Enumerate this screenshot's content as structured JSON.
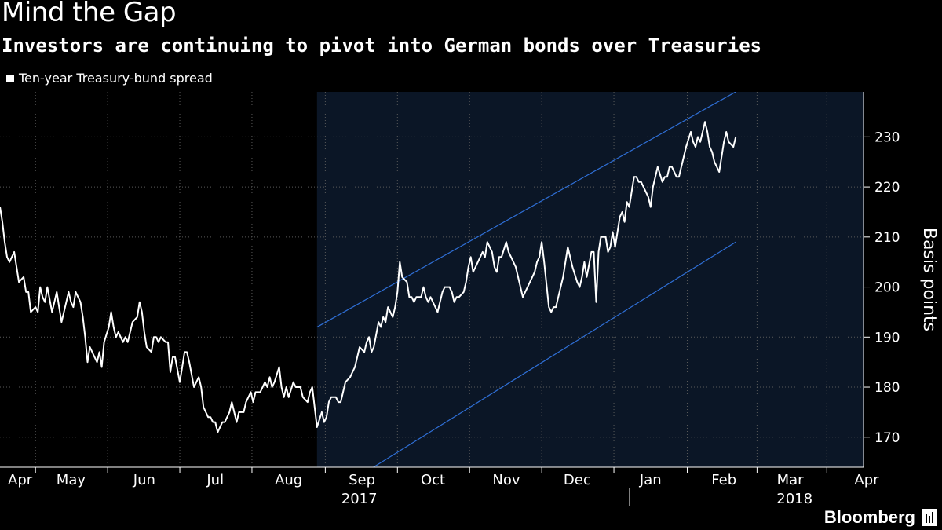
{
  "chart_data": {
    "type": "line",
    "title": "Mind the Gap",
    "subtitle": "Investors are continuing to pivot into German bonds over Treasuries",
    "ylabel": "Basis points",
    "ylim": [
      164,
      239
    ],
    "yticks": [
      170,
      180,
      190,
      200,
      210,
      220,
      230
    ],
    "x_range_days": [
      0,
      365
    ],
    "series": [
      {
        "name": "Ten-year Treasury-bund spread",
        "color": "#ffffff",
        "points": [
          [
            0,
            216
          ],
          [
            1,
            213
          ],
          [
            2,
            209
          ],
          [
            3,
            206
          ],
          [
            4,
            205
          ],
          [
            6,
            207
          ],
          [
            7,
            204
          ],
          [
            8,
            201
          ],
          [
            10,
            202
          ],
          [
            11,
            199
          ],
          [
            12,
            199
          ],
          [
            13,
            195
          ],
          [
            15,
            196
          ],
          [
            16,
            195
          ],
          [
            17,
            200
          ],
          [
            18,
            198
          ],
          [
            19,
            197
          ],
          [
            20,
            200
          ],
          [
            22,
            195
          ],
          [
            23,
            197
          ],
          [
            24,
            199
          ],
          [
            25,
            196
          ],
          [
            26,
            193
          ],
          [
            28,
            197
          ],
          [
            29,
            199
          ],
          [
            30,
            197
          ],
          [
            31,
            196
          ],
          [
            32,
            199
          ],
          [
            34,
            197
          ],
          [
            35,
            194
          ],
          [
            36,
            190
          ],
          [
            37,
            185
          ],
          [
            38,
            188
          ],
          [
            40,
            186
          ],
          [
            41,
            185
          ],
          [
            42,
            187
          ],
          [
            43,
            184
          ],
          [
            44,
            189
          ],
          [
            46,
            192
          ],
          [
            47,
            195
          ],
          [
            48,
            192
          ],
          [
            49,
            190
          ],
          [
            50,
            191
          ],
          [
            52,
            189
          ],
          [
            53,
            190
          ],
          [
            54,
            189
          ],
          [
            55,
            191
          ],
          [
            56,
            193
          ],
          [
            58,
            194
          ],
          [
            59,
            197
          ],
          [
            60,
            195
          ],
          [
            61,
            191
          ],
          [
            62,
            188
          ],
          [
            64,
            187
          ],
          [
            65,
            190
          ],
          [
            66,
            190
          ],
          [
            67,
            189
          ],
          [
            68,
            190
          ],
          [
            70,
            189
          ],
          [
            71,
            189
          ],
          [
            72,
            183
          ],
          [
            73,
            186
          ],
          [
            74,
            186
          ],
          [
            76,
            181
          ],
          [
            77,
            184
          ],
          [
            78,
            187
          ],
          [
            79,
            187
          ],
          [
            80,
            185
          ],
          [
            82,
            180
          ],
          [
            83,
            181
          ],
          [
            84,
            182
          ],
          [
            85,
            180
          ],
          [
            86,
            176
          ],
          [
            88,
            174
          ],
          [
            89,
            174
          ],
          [
            90,
            173
          ],
          [
            91,
            173
          ],
          [
            92,
            171
          ],
          [
            94,
            173
          ],
          [
            95,
            173
          ],
          [
            96,
            174
          ],
          [
            97,
            175
          ],
          [
            98,
            177
          ],
          [
            100,
            173
          ],
          [
            101,
            175
          ],
          [
            102,
            175
          ],
          [
            103,
            175
          ],
          [
            104,
            177
          ],
          [
            106,
            179
          ],
          [
            107,
            177
          ],
          [
            108,
            179
          ],
          [
            109,
            179
          ],
          [
            110,
            179
          ],
          [
            112,
            181
          ],
          [
            113,
            180
          ],
          [
            114,
            182
          ],
          [
            115,
            180
          ],
          [
            116,
            181
          ],
          [
            118,
            184
          ],
          [
            119,
            180
          ],
          [
            120,
            178
          ],
          [
            121,
            180
          ],
          [
            122,
            178
          ],
          [
            124,
            181
          ],
          [
            125,
            180
          ],
          [
            126,
            180
          ],
          [
            127,
            180
          ],
          [
            128,
            178
          ],
          [
            130,
            177
          ],
          [
            131,
            179
          ],
          [
            132,
            180
          ],
          [
            133,
            176
          ],
          [
            134,
            172
          ],
          [
            136,
            175
          ],
          [
            137,
            173
          ],
          [
            138,
            174
          ],
          [
            139,
            177
          ],
          [
            140,
            178
          ],
          [
            142,
            178
          ],
          [
            143,
            177
          ],
          [
            144,
            177
          ],
          [
            145,
            179
          ],
          [
            146,
            181
          ],
          [
            148,
            182
          ],
          [
            149,
            183
          ],
          [
            150,
            184
          ],
          [
            151,
            186
          ],
          [
            152,
            188
          ],
          [
            154,
            187
          ],
          [
            155,
            189
          ],
          [
            156,
            190
          ],
          [
            157,
            187
          ],
          [
            158,
            188
          ],
          [
            160,
            193
          ],
          [
            161,
            192
          ],
          [
            162,
            194
          ],
          [
            163,
            193
          ],
          [
            164,
            196
          ],
          [
            166,
            194
          ],
          [
            167,
            196
          ],
          [
            168,
            199
          ],
          [
            169,
            205
          ],
          [
            170,
            202
          ],
          [
            172,
            201
          ],
          [
            173,
            198
          ],
          [
            174,
            198
          ],
          [
            175,
            197
          ],
          [
            176,
            198
          ],
          [
            178,
            198
          ],
          [
            179,
            200
          ],
          [
            180,
            198
          ],
          [
            181,
            197
          ],
          [
            182,
            198
          ],
          [
            184,
            196
          ],
          [
            185,
            195
          ],
          [
            186,
            197
          ],
          [
            187,
            199
          ],
          [
            188,
            200
          ],
          [
            190,
            200
          ],
          [
            191,
            199
          ],
          [
            192,
            197
          ],
          [
            193,
            198
          ],
          [
            194,
            198
          ],
          [
            196,
            199
          ],
          [
            197,
            201
          ],
          [
            198,
            204
          ],
          [
            199,
            206
          ],
          [
            200,
            203
          ],
          [
            202,
            205
          ],
          [
            203,
            206
          ],
          [
            204,
            207
          ],
          [
            205,
            206
          ],
          [
            206,
            209
          ],
          [
            208,
            207
          ],
          [
            209,
            204
          ],
          [
            210,
            203
          ],
          [
            211,
            206
          ],
          [
            212,
            206
          ],
          [
            214,
            209
          ],
          [
            215,
            207
          ],
          [
            216,
            206
          ],
          [
            217,
            205
          ],
          [
            218,
            204
          ],
          [
            220,
            200
          ],
          [
            221,
            198
          ],
          [
            222,
            199
          ],
          [
            223,
            200
          ],
          [
            224,
            201
          ],
          [
            226,
            203
          ],
          [
            227,
            205
          ],
          [
            228,
            206
          ],
          [
            229,
            209
          ],
          [
            230,
            205
          ],
          [
            232,
            196
          ],
          [
            233,
            195
          ],
          [
            234,
            196
          ],
          [
            235,
            196
          ],
          [
            236,
            198
          ],
          [
            238,
            202
          ],
          [
            239,
            205
          ],
          [
            240,
            208
          ],
          [
            241,
            206
          ],
          [
            242,
            204
          ],
          [
            244,
            201
          ],
          [
            245,
            200
          ],
          [
            246,
            202
          ],
          [
            247,
            205
          ],
          [
            248,
            202
          ],
          [
            250,
            207
          ],
          [
            251,
            207
          ],
          [
            252,
            197
          ],
          [
            253,
            207
          ],
          [
            254,
            210
          ],
          [
            256,
            210
          ],
          [
            257,
            207
          ],
          [
            258,
            208
          ],
          [
            259,
            211
          ],
          [
            260,
            208
          ],
          [
            262,
            214
          ],
          [
            263,
            215
          ],
          [
            264,
            213
          ],
          [
            265,
            217
          ],
          [
            266,
            216
          ],
          [
            268,
            222
          ],
          [
            269,
            222
          ],
          [
            270,
            221
          ],
          [
            271,
            221
          ],
          [
            272,
            220
          ],
          [
            274,
            218
          ],
          [
            275,
            216
          ],
          [
            276,
            220
          ],
          [
            277,
            222
          ],
          [
            278,
            224
          ],
          [
            280,
            221
          ],
          [
            281,
            222
          ],
          [
            282,
            222
          ],
          [
            283,
            224
          ],
          [
            284,
            224
          ],
          [
            286,
            222
          ],
          [
            287,
            222
          ],
          [
            288,
            224
          ],
          [
            289,
            226
          ],
          [
            290,
            228
          ],
          [
            292,
            231
          ],
          [
            293,
            229
          ],
          [
            294,
            228
          ],
          [
            295,
            230
          ],
          [
            296,
            229
          ],
          [
            298,
            233
          ],
          [
            299,
            231
          ],
          [
            300,
            228
          ],
          [
            301,
            227
          ],
          [
            302,
            225
          ],
          [
            304,
            223
          ],
          [
            305,
            226
          ],
          [
            306,
            229
          ],
          [
            307,
            231
          ],
          [
            308,
            229
          ],
          [
            310,
            228
          ],
          [
            311,
            230
          ]
        ]
      }
    ],
    "channel": {
      "upper": {
        "start": [
          134,
          192
        ],
        "end": [
          311,
          239
        ]
      },
      "lower": {
        "start": [
          134,
          157
        ],
        "end": [
          311,
          209
        ]
      }
    },
    "xticks": [
      {
        "label": "Apr",
        "day": 0
      },
      {
        "label": "May",
        "day": 30
      },
      {
        "label": "Jun",
        "day": 61
      },
      {
        "label": "Jul",
        "day": 91
      },
      {
        "label": "Aug",
        "day": 122
      },
      {
        "label": "Sep",
        "day": 153
      },
      {
        "label": "Oct",
        "day": 183
      },
      {
        "label": "Nov",
        "day": 214
      },
      {
        "label": "Dec",
        "day": 244
      },
      {
        "label": "Jan",
        "day": 275
      },
      {
        "label": "Feb",
        "day": 306
      },
      {
        "label": "Mar",
        "day": 334
      },
      {
        "label": "Apr",
        "day": 365
      }
    ],
    "year_labels": [
      {
        "label": "2017",
        "day": 122
      },
      {
        "label": "2018",
        "day": 306
      }
    ]
  },
  "legend_label": "Ten-year Treasury-bund spread",
  "brand": "Bloomberg",
  "colors": {
    "background": "#000000",
    "line": "#ffffff",
    "channel_line": "#2f6fd6",
    "channel_fill": "#0b1626",
    "grid": "#5a5a5a"
  }
}
